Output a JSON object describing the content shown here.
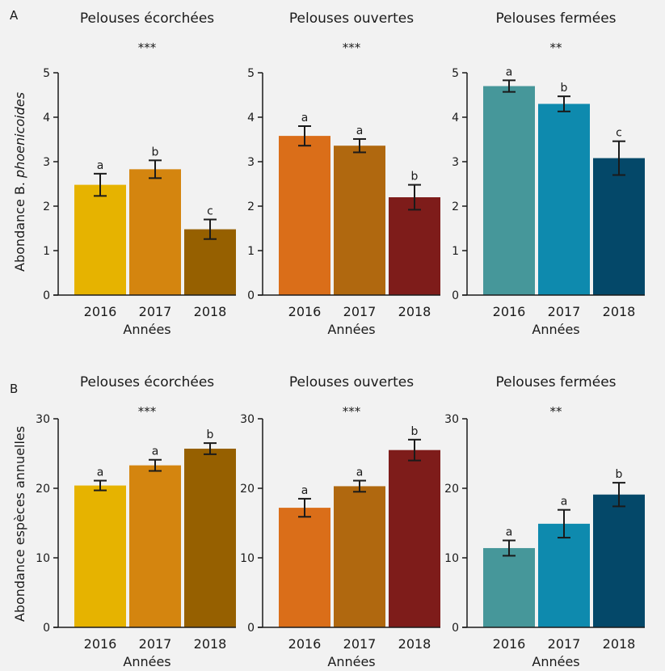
{
  "figure": {
    "rows": [
      {
        "letter": "A",
        "ylabel_plain": "Abondance B. ",
        "ylabel_italic": "phoenicoides"
      },
      {
        "letter": "B",
        "ylabel_plain": "Abondance espèces annuelles",
        "ylabel_italic": ""
      }
    ]
  },
  "chart_data": [
    {
      "type": "bar",
      "row": 0,
      "title": "Pelouses écorchées",
      "significance": "***",
      "categories": [
        "2016",
        "2017",
        "2018"
      ],
      "values": [
        2.48,
        2.83,
        1.48
      ],
      "errors": [
        0.25,
        0.2,
        0.22
      ],
      "letters": [
        "a",
        "b",
        "c"
      ],
      "colors": [
        "#e6b300",
        "#d4850f",
        "#966000"
      ],
      "ylim": [
        0,
        5
      ],
      "yticks": [
        0,
        1,
        2,
        3,
        4,
        5
      ],
      "xlabel": "Années"
    },
    {
      "type": "bar",
      "row": 0,
      "title": "Pelouses ouvertes",
      "significance": "***",
      "categories": [
        "2016",
        "2017",
        "2018"
      ],
      "values": [
        3.58,
        3.36,
        2.2
      ],
      "errors": [
        0.22,
        0.15,
        0.28
      ],
      "letters": [
        "a",
        "a",
        "b"
      ],
      "colors": [
        "#da6e19",
        "#b0680f",
        "#7e1c1a"
      ],
      "ylim": [
        0,
        5
      ],
      "yticks": [
        0,
        1,
        2,
        3,
        4,
        5
      ],
      "xlabel": "Années"
    },
    {
      "type": "bar",
      "row": 0,
      "title": "Pelouses fermées",
      "significance": "**",
      "categories": [
        "2016",
        "2017",
        "2018"
      ],
      "values": [
        4.7,
        4.3,
        3.08
      ],
      "errors": [
        0.13,
        0.17,
        0.38
      ],
      "letters": [
        "a",
        "b",
        "c"
      ],
      "colors": [
        "#46979a",
        "#0e8aae",
        "#044869"
      ],
      "ylim": [
        0,
        5
      ],
      "yticks": [
        0,
        1,
        2,
        3,
        4,
        5
      ],
      "xlabel": "Années"
    },
    {
      "type": "bar",
      "row": 1,
      "title": "Pelouses écorchées",
      "significance": "***",
      "categories": [
        "2016",
        "2017",
        "2018"
      ],
      "values": [
        20.4,
        23.3,
        25.7
      ],
      "errors": [
        0.7,
        0.8,
        0.8
      ],
      "letters": [
        "a",
        "a",
        "b"
      ],
      "colors": [
        "#e6b300",
        "#d4850f",
        "#966000"
      ],
      "ylim": [
        0,
        30
      ],
      "yticks": [
        0,
        10,
        20,
        30
      ],
      "xlabel": "Années"
    },
    {
      "type": "bar",
      "row": 1,
      "title": "Pelouses ouvertes",
      "significance": "***",
      "categories": [
        "2016",
        "2017",
        "2018"
      ],
      "values": [
        17.2,
        20.3,
        25.5
      ],
      "errors": [
        1.3,
        0.8,
        1.5
      ],
      "letters": [
        "a",
        "a",
        "b"
      ],
      "colors": [
        "#da6e19",
        "#b0680f",
        "#7e1c1a"
      ],
      "ylim": [
        0,
        30
      ],
      "yticks": [
        0,
        10,
        20,
        30
      ],
      "xlabel": "Années"
    },
    {
      "type": "bar",
      "row": 1,
      "title": "Pelouses fermées",
      "significance": "**",
      "categories": [
        "2016",
        "2017",
        "2018"
      ],
      "values": [
        11.4,
        14.9,
        19.1
      ],
      "errors": [
        1.1,
        2.0,
        1.7
      ],
      "letters": [
        "a",
        "a",
        "b"
      ],
      "colors": [
        "#46979a",
        "#0e8aae",
        "#044869"
      ],
      "ylim": [
        0,
        30
      ],
      "yticks": [
        0,
        10,
        20,
        30
      ],
      "xlabel": "Années"
    }
  ]
}
